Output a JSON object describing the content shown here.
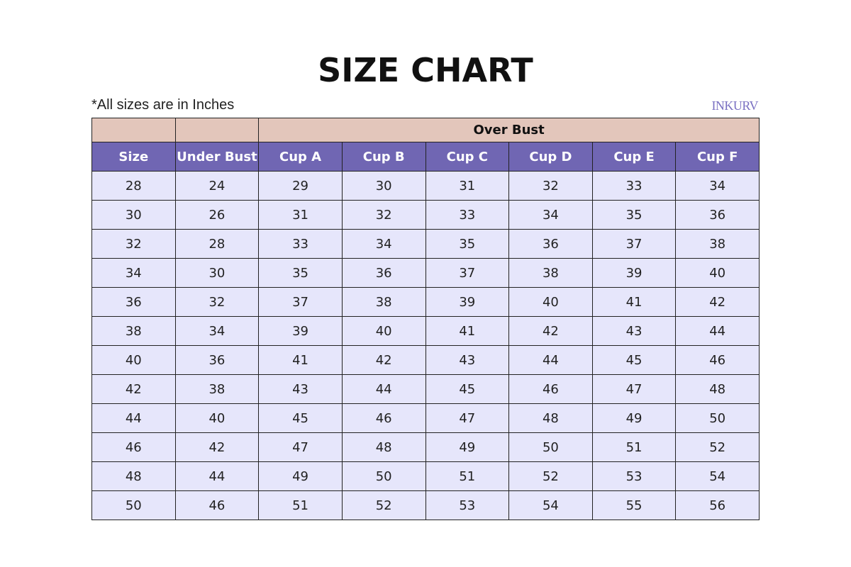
{
  "title": "SIZE CHART",
  "note": "*All sizes are in Inches",
  "logo": "INKURV",
  "colors": {
    "group_header": "#e3c6bb",
    "header": "#7066b3",
    "cell": "#e6e6fb"
  },
  "table": {
    "group_header": "Over Bust",
    "columns": [
      "Size",
      "Under Bust",
      "Cup A",
      "Cup B",
      "Cup C",
      "Cup D",
      "Cup E",
      "Cup F"
    ],
    "rows": [
      [
        "28",
        "24",
        "29",
        "30",
        "31",
        "32",
        "33",
        "34"
      ],
      [
        "30",
        "26",
        "31",
        "32",
        "33",
        "34",
        "35",
        "36"
      ],
      [
        "32",
        "28",
        "33",
        "34",
        "35",
        "36",
        "37",
        "38"
      ],
      [
        "34",
        "30",
        "35",
        "36",
        "37",
        "38",
        "39",
        "40"
      ],
      [
        "36",
        "32",
        "37",
        "38",
        "39",
        "40",
        "41",
        "42"
      ],
      [
        "38",
        "34",
        "39",
        "40",
        "41",
        "42",
        "43",
        "44"
      ],
      [
        "40",
        "36",
        "41",
        "42",
        "43",
        "44",
        "45",
        "46"
      ],
      [
        "42",
        "38",
        "43",
        "44",
        "45",
        "46",
        "47",
        "48"
      ],
      [
        "44",
        "40",
        "45",
        "46",
        "47",
        "48",
        "49",
        "50"
      ],
      [
        "46",
        "42",
        "47",
        "48",
        "49",
        "50",
        "51",
        "52"
      ],
      [
        "48",
        "44",
        "49",
        "50",
        "51",
        "52",
        "53",
        "54"
      ],
      [
        "50",
        "46",
        "51",
        "52",
        "53",
        "54",
        "55",
        "56"
      ]
    ]
  }
}
